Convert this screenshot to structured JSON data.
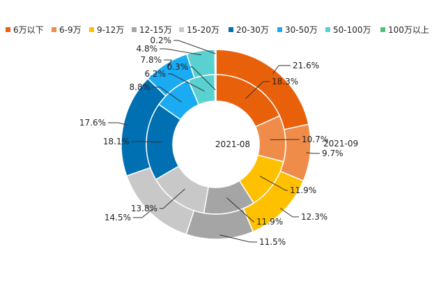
{
  "chart_data": {
    "type": "pie",
    "subtype": "nested-donut",
    "title": "",
    "legend": {
      "position": "top",
      "items": [
        {
          "label": "6万以下",
          "color": "#e8600a"
        },
        {
          "label": "6-9万",
          "color": "#f08c4a"
        },
        {
          "label": "9-12万",
          "color": "#ffc000"
        },
        {
          "label": "12-15万",
          "color": "#a5a5a5"
        },
        {
          "label": "15-20万",
          "color": "#c8c8c8"
        },
        {
          "label": "20-30万",
          "color": "#0070b2"
        },
        {
          "label": "30-50万",
          "color": "#1aabf3"
        },
        {
          "label": "50-100万",
          "color": "#5ad1d1"
        },
        {
          "label": "100万以上",
          "color": "#4cc276"
        }
      ]
    },
    "series": [
      {
        "name": "2021-08",
        "ring": "inner",
        "values": [
          18.3,
          10.7,
          11.9,
          11.9,
          13.8,
          18.1,
          8.8,
          6.2,
          0.3
        ],
        "labels": [
          "18.3%",
          "10.7%",
          "11.9%",
          "11.9%",
          "13.8%",
          "18.1%",
          "8.8%",
          "6.2%",
          "0.3%"
        ]
      },
      {
        "name": "2021-09",
        "ring": "outer",
        "values": [
          21.6,
          9.7,
          12.3,
          11.5,
          14.5,
          17.6,
          7.8,
          4.8,
          0.2
        ],
        "labels": [
          "21.6%",
          "9.7%",
          "12.3%",
          "11.5%",
          "14.5%",
          "17.6%",
          "7.8%",
          "4.8%",
          "0.2%"
        ]
      }
    ]
  }
}
